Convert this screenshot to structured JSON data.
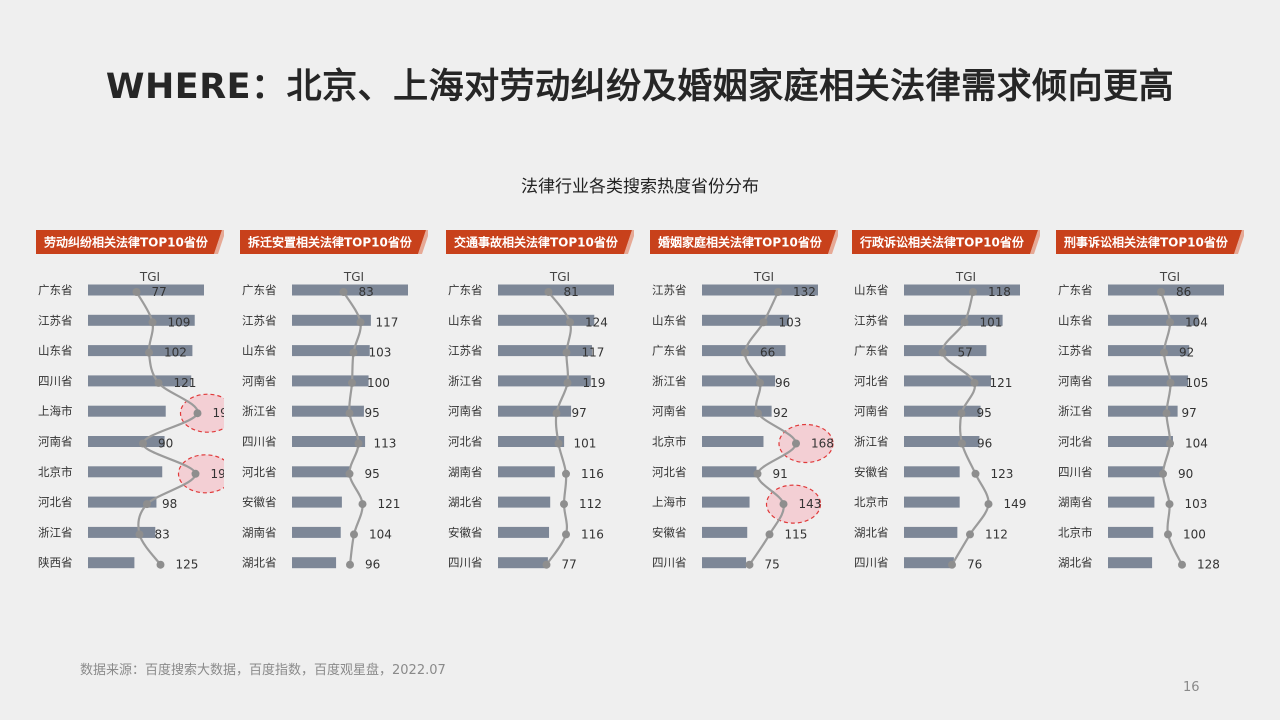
{
  "title": "WHERE：北京、上海对劳动纠纷及婚姻家庭相关法律需求倾向更高",
  "subtitle": "法律行业各类搜索热度省份分布",
  "source": "数据来源：百度搜索大数据，百度指数，百度观星盘，2022.07",
  "page_number": "16",
  "colors": {
    "header": "#c8411b",
    "bar": "#7d8797",
    "line": "#9b9b9b",
    "highlight_fill": "#f3c9cf",
    "highlight_stroke": "#e03a3a"
  },
  "chart_data": [
    {
      "type": "bar",
      "title": "劳动纠纷相关法律TOP10省份",
      "tgi_label": "TGI",
      "categories": [
        "广东省",
        "江苏省",
        "山东省",
        "四川省",
        "上海市",
        "河南省",
        "北京市",
        "河北省",
        "浙江省",
        "陕西省"
      ],
      "values": [
        100,
        92,
        90,
        89,
        67,
        66,
        64,
        59,
        58,
        40
      ],
      "tgi": [
        77,
        109,
        102,
        121,
        199,
        90,
        195,
        98,
        83,
        125
      ],
      "highlight": [
        4,
        6
      ]
    },
    {
      "type": "bar",
      "title": "拆迁安置相关法律TOP10省份",
      "tgi_label": "TGI",
      "categories": [
        "广东省",
        "江苏省",
        "山东省",
        "河南省",
        "浙江省",
        "四川省",
        "河北省",
        "安徽省",
        "湖南省",
        "湖北省"
      ],
      "values": [
        100,
        68,
        67,
        66,
        62,
        63,
        50,
        43,
        42,
        38
      ],
      "tgi": [
        83,
        117,
        103,
        100,
        95,
        113,
        95,
        121,
        104,
        96
      ],
      "highlight": []
    },
    {
      "type": "bar",
      "title": "交通事故相关法律TOP10省份",
      "tgi_label": "TGI",
      "categories": [
        "广东省",
        "山东省",
        "江苏省",
        "浙江省",
        "河南省",
        "河北省",
        "湖南省",
        "湖北省",
        "安徽省",
        "四川省"
      ],
      "values": [
        100,
        83,
        81,
        80,
        63,
        57,
        49,
        45,
        44,
        43
      ],
      "tgi": [
        81,
        124,
        117,
        119,
        97,
        101,
        116,
        112,
        116,
        77
      ],
      "highlight": []
    },
    {
      "type": "bar",
      "title": "婚姻家庭相关法律TOP10省份",
      "tgi_label": "TGI",
      "categories": [
        "江苏省",
        "山东省",
        "广东省",
        "浙江省",
        "河南省",
        "北京市",
        "河北省",
        "上海市",
        "安徽省",
        "四川省"
      ],
      "values": [
        100,
        75,
        72,
        63,
        60,
        53,
        47,
        41,
        39,
        38
      ],
      "tgi": [
        132,
        103,
        66,
        96,
        92,
        168,
        91,
        143,
        115,
        75
      ],
      "highlight": [
        5,
        7
      ]
    },
    {
      "type": "bar",
      "title": "行政诉讼相关法律TOP10省份",
      "tgi_label": "TGI",
      "categories": [
        "山东省",
        "江苏省",
        "广东省",
        "河北省",
        "河南省",
        "浙江省",
        "安徽省",
        "北京市",
        "湖北省",
        "四川省"
      ],
      "values": [
        100,
        85,
        71,
        75,
        66,
        65,
        48,
        48,
        46,
        43
      ],
      "tgi": [
        118,
        101,
        57,
        121,
        95,
        96,
        123,
        149,
        112,
        76
      ],
      "highlight": []
    },
    {
      "type": "bar",
      "title": "刑事诉讼相关法律TOP10省份",
      "tgi_label": "TGI",
      "categories": [
        "广东省",
        "山东省",
        "江苏省",
        "河南省",
        "浙江省",
        "河北省",
        "四川省",
        "湖南省",
        "北京市",
        "湖北省"
      ],
      "values": [
        100,
        78,
        70,
        69,
        60,
        56,
        48,
        40,
        39,
        38
      ],
      "tgi": [
        86,
        104,
        92,
        105,
        97,
        104,
        90,
        103,
        100,
        128
      ],
      "highlight": []
    }
  ]
}
